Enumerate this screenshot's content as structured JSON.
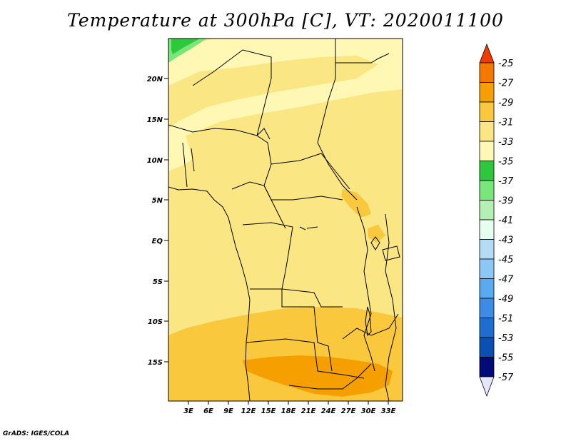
{
  "title": "Temperature at 300hPa [C], VT: 2020011100",
  "footer": "GrADS: IGES/COLA",
  "map": {
    "lat_labels": [
      "20N",
      "15N",
      "10N",
      "5N",
      "EQ",
      "5S",
      "10S",
      "15S"
    ],
    "lon_labels": [
      "3E",
      "6E",
      "9E",
      "12E",
      "15E",
      "18E",
      "21E",
      "24E",
      "27E",
      "30E",
      "33E"
    ],
    "region": "Central Africa",
    "variable": "Temperature",
    "level": "300hPa",
    "units": "C"
  },
  "colorbar": {
    "levels": [
      "-25",
      "-27",
      "-29",
      "-31",
      "-33",
      "-35",
      "-37",
      "-39",
      "-41",
      "-43",
      "-45",
      "-47",
      "-49",
      "-51",
      "-53",
      "-55",
      "-57"
    ],
    "colors": [
      "#f03c00",
      "#f57800",
      "#f5a000",
      "#fac83c",
      "#fae682",
      "#fff8b4",
      "#2ec83c",
      "#78e678",
      "#b4f0b4",
      "#e6fff0",
      "#b4dcf5",
      "#8cc8f5",
      "#5aaaf0",
      "#3c8ce6",
      "#1e6ed2",
      "#0a50b4",
      "#000a78",
      "#e6e6fa"
    ]
  }
}
